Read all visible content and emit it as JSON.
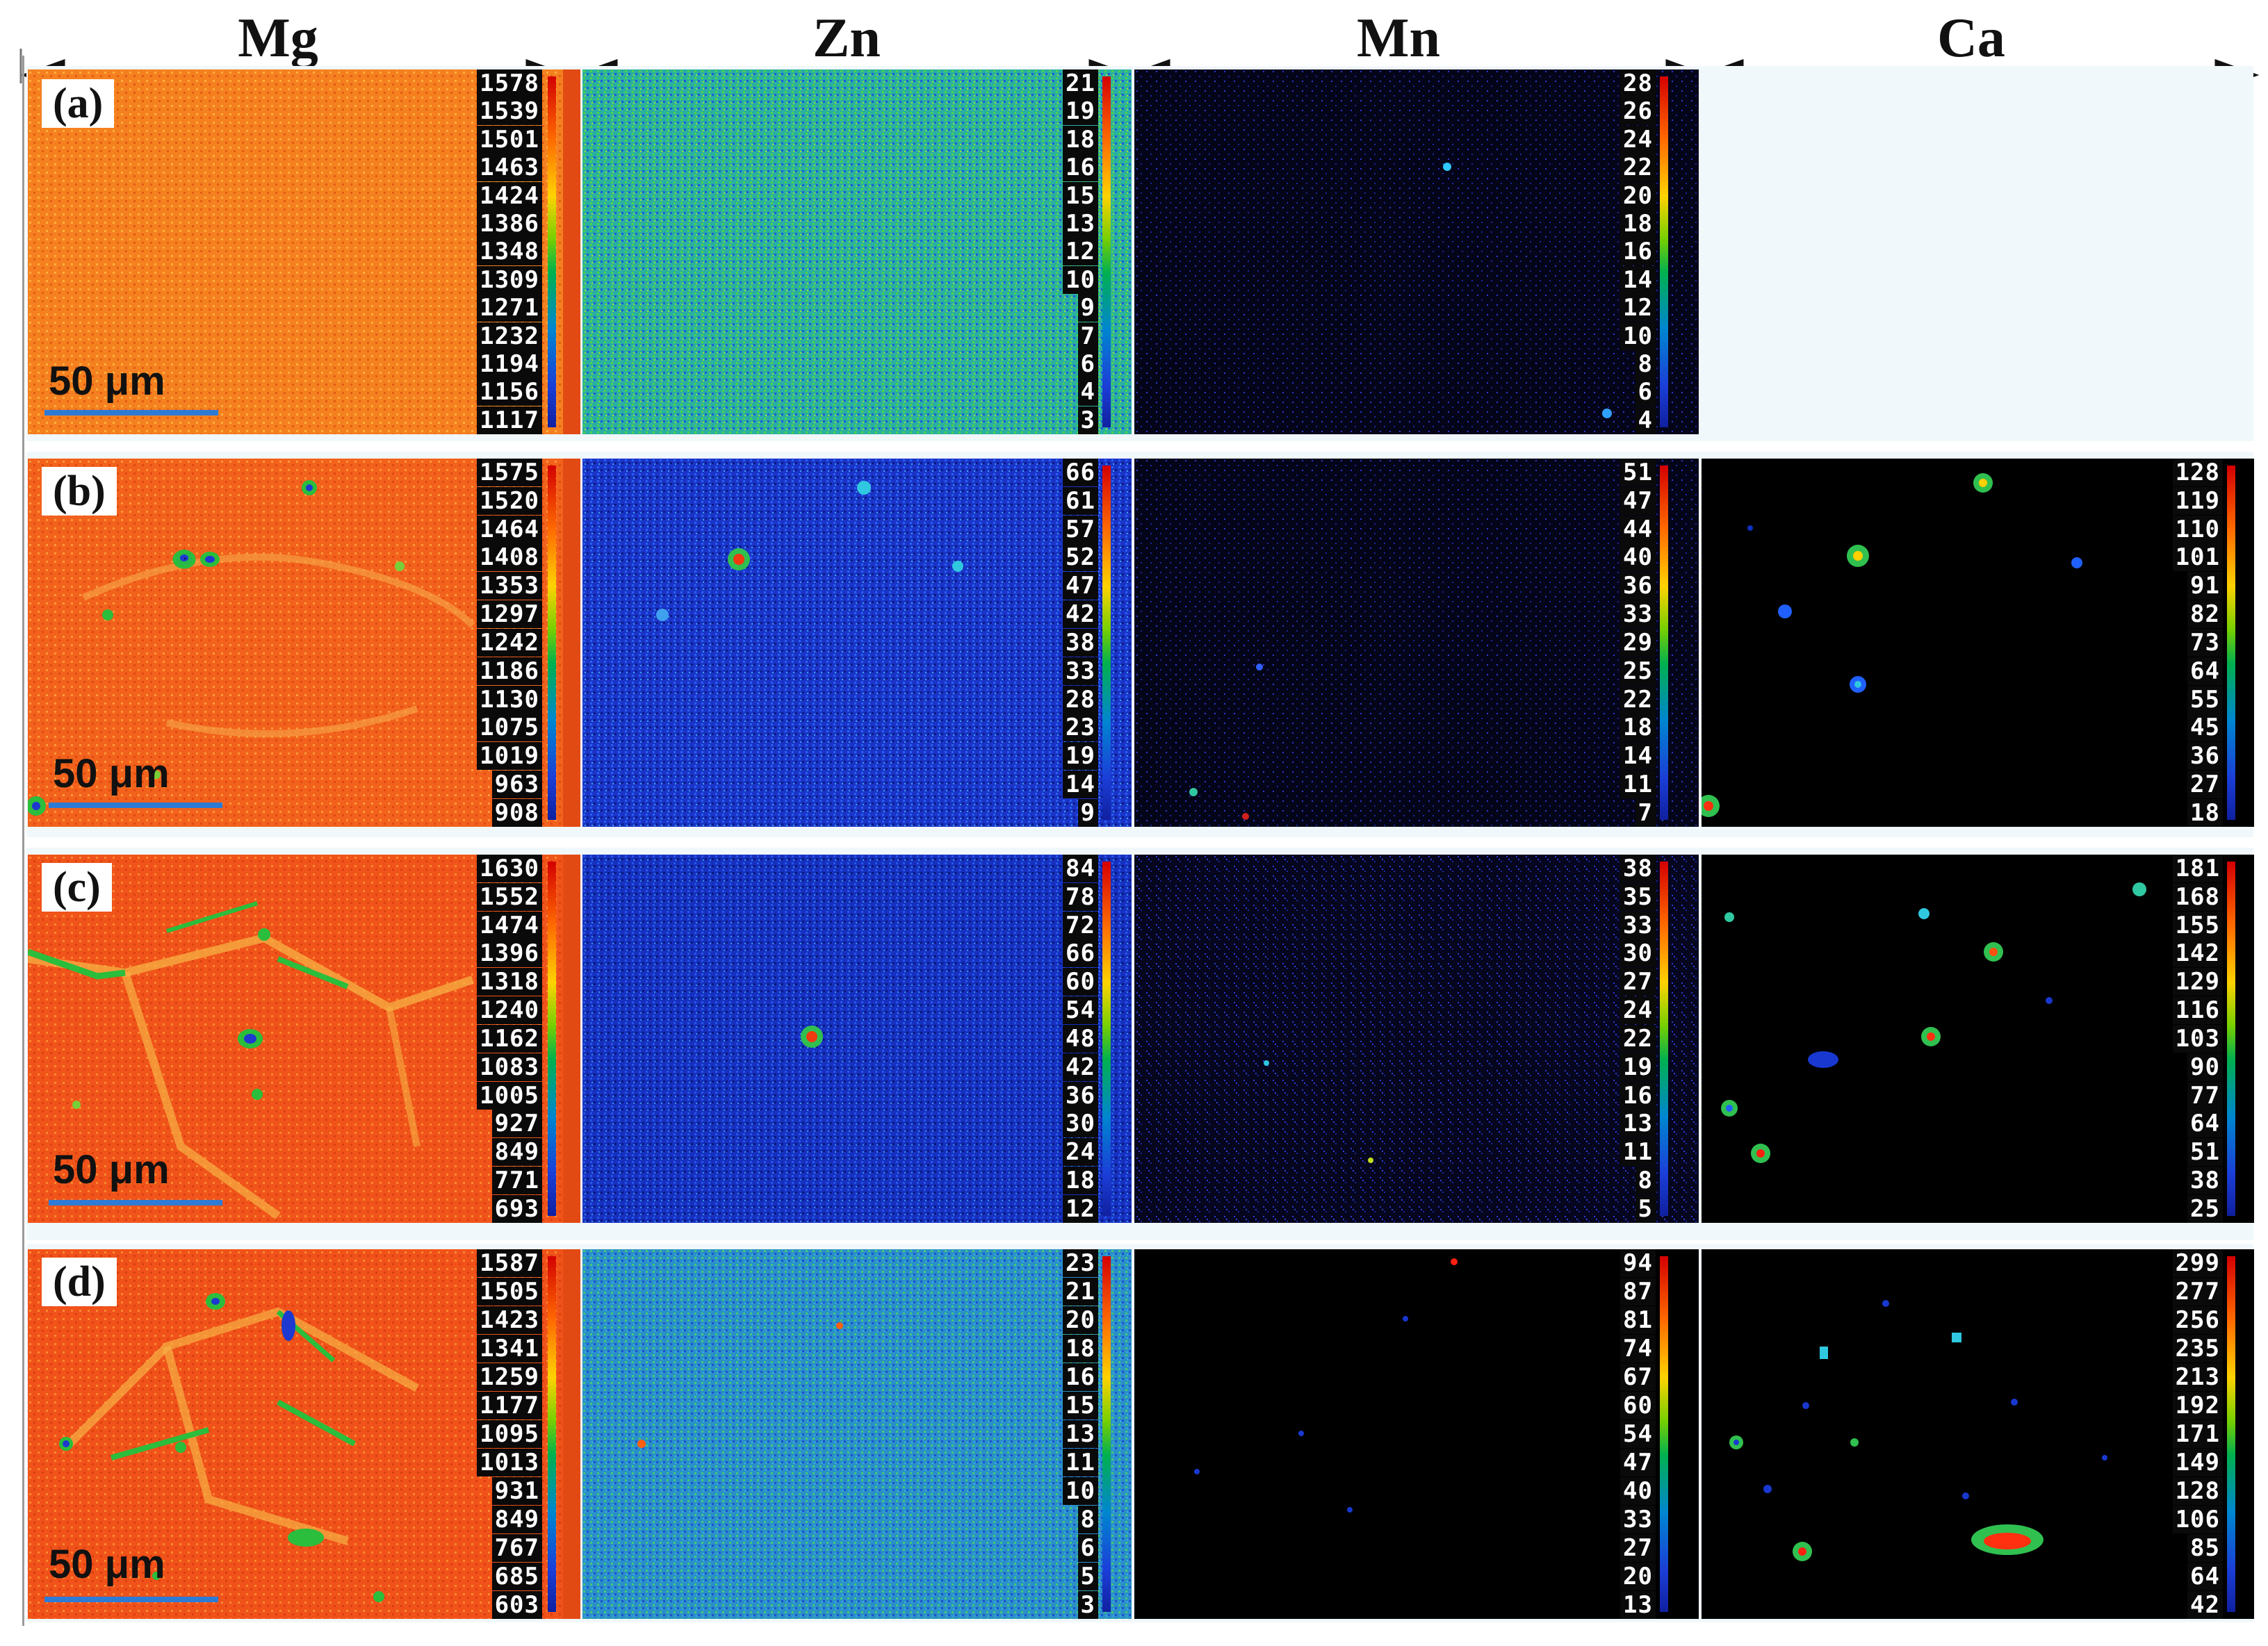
{
  "columns": [
    "Mg",
    "Zn",
    "Mn",
    "Ca"
  ],
  "scale_bar": "50 μm",
  "rows": [
    {
      "label": "(a)",
      "mg": [
        "1578",
        "1539",
        "1501",
        "1463",
        "1424",
        "1386",
        "1348",
        "1309",
        "1271",
        "1232",
        "1194",
        "1156",
        "1117"
      ],
      "zn": [
        "21",
        "19",
        "18",
        "16",
        "15",
        "13",
        "12",
        "10",
        "9",
        "7",
        "6",
        "4",
        "3"
      ],
      "mn": [
        "28",
        "26",
        "24",
        "22",
        "20",
        "18",
        "16",
        "14",
        "12",
        "10",
        "8",
        "6",
        "4"
      ],
      "ca": []
    },
    {
      "label": "(b)",
      "mg": [
        "1575",
        "1520",
        "1464",
        "1408",
        "1353",
        "1297",
        "1242",
        "1186",
        "1130",
        "1075",
        "1019",
        "963",
        "908"
      ],
      "zn": [
        "66",
        "61",
        "57",
        "52",
        "47",
        "42",
        "38",
        "33",
        "28",
        "23",
        "19",
        "14",
        "9"
      ],
      "mn": [
        "51",
        "47",
        "44",
        "40",
        "36",
        "33",
        "29",
        "25",
        "22",
        "18",
        "14",
        "11",
        "7"
      ],
      "ca": [
        "128",
        "119",
        "110",
        "101",
        "91",
        "82",
        "73",
        "64",
        "55",
        "45",
        "36",
        "27",
        "18"
      ]
    },
    {
      "label": "(c)",
      "mg": [
        "1630",
        "1552",
        "1474",
        "1396",
        "1318",
        "1240",
        "1162",
        "1083",
        "1005",
        "927",
        "849",
        "771",
        "693"
      ],
      "zn": [
        "84",
        "78",
        "72",
        "66",
        "60",
        "54",
        "48",
        "42",
        "36",
        "30",
        "24",
        "18",
        "12"
      ],
      "mn": [
        "38",
        "35",
        "33",
        "30",
        "27",
        "24",
        "22",
        "19",
        "16",
        "13",
        "11",
        "8",
        "5"
      ],
      "ca": [
        "181",
        "168",
        "155",
        "142",
        "129",
        "116",
        "103",
        "90",
        "77",
        "64",
        "51",
        "38",
        "25"
      ]
    },
    {
      "label": "(d)",
      "mg": [
        "1587",
        "1505",
        "1423",
        "1341",
        "1259",
        "1177",
        "1095",
        "1013",
        "931",
        "849",
        "767",
        "685",
        "603"
      ],
      "zn": [
        "23",
        "21",
        "20",
        "18",
        "16",
        "15",
        "13",
        "11",
        "10",
        "8",
        "6",
        "5",
        "3"
      ],
      "mn": [
        "94",
        "87",
        "81",
        "74",
        "67",
        "60",
        "54",
        "47",
        "40",
        "33",
        "27",
        "20",
        "13"
      ],
      "ca": [
        "299",
        "277",
        "256",
        "235",
        "213",
        "192",
        "171",
        "149",
        "128",
        "106",
        "85",
        "64",
        "42"
      ]
    }
  ],
  "colors": {
    "mg_map": "#f06a1c",
    "zn_map": "#1c3fe0",
    "mn_map": "#050520",
    "ca_map": "#000000",
    "arrow": "#111111",
    "scale_line": "#2e7bd6"
  }
}
